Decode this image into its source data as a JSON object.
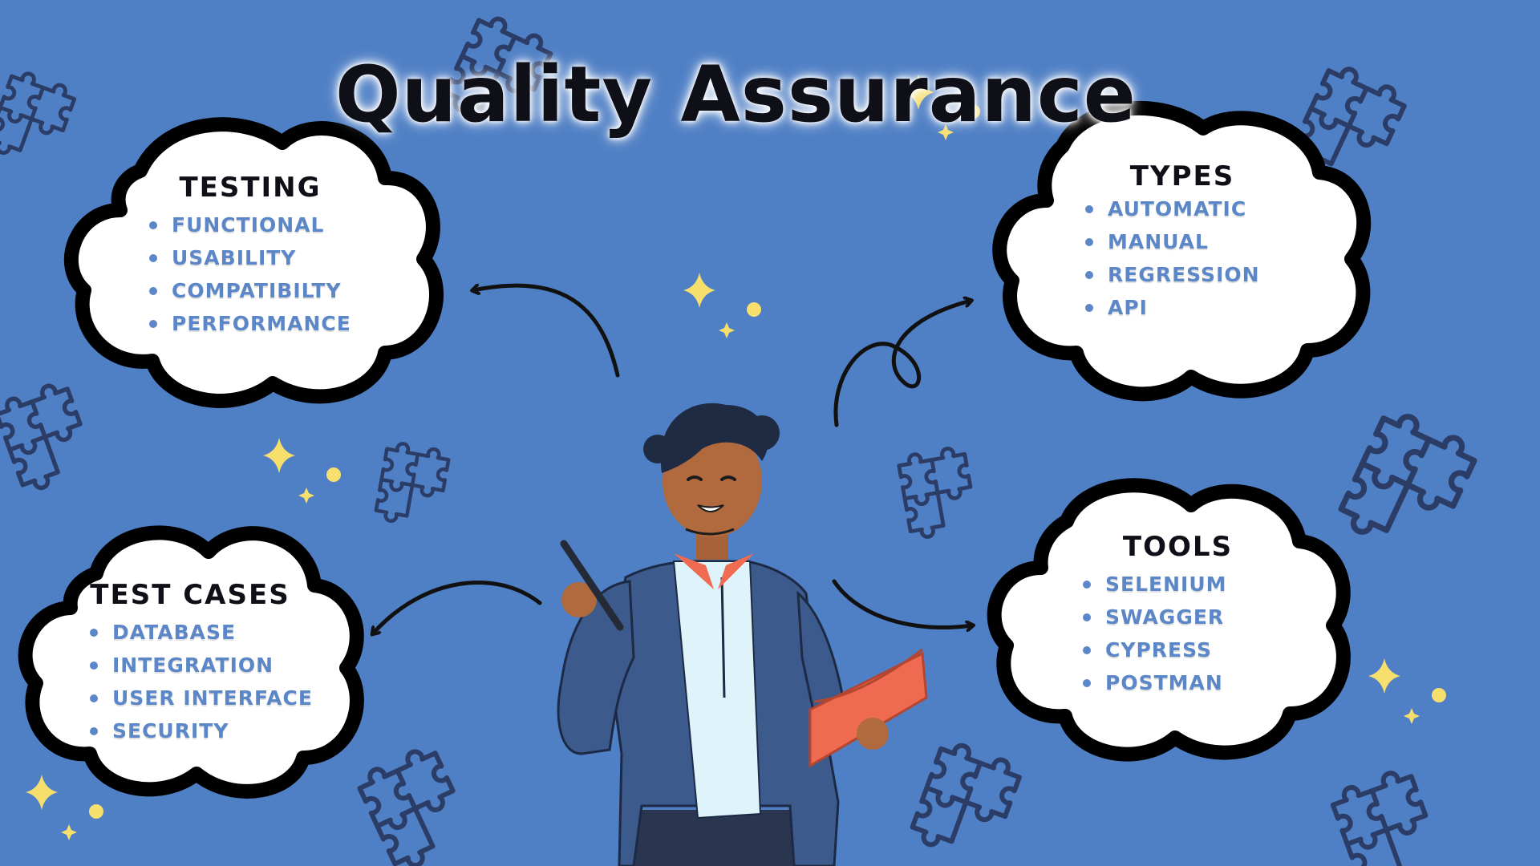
{
  "title": "Quality Assurance",
  "colors": {
    "background": "#4f7fc5",
    "cloud_fill": "#ffffff",
    "cloud_outline": "#000000",
    "list_text": "#5b86c8",
    "sparkle": "#f7df6e",
    "puzzle_piece": "#2b3d66"
  },
  "clouds": [
    {
      "heading": "TESTING",
      "items": [
        "FUNCTIONAL",
        "USABILITY",
        "COMPATIBILTY",
        "PERFORMANCE"
      ]
    },
    {
      "heading": "TYPES",
      "items": [
        "AUTOMATIC",
        "MANUAL",
        "REGRESSION",
        "API"
      ]
    },
    {
      "heading": "TEST CASES",
      "items": [
        "DATABASE",
        "INTEGRATION",
        "USER INTERFACE",
        "SECURITY"
      ]
    },
    {
      "heading": "TOOLS",
      "items": [
        "SELENIUM",
        "SWAGGER",
        "CYPRESS",
        "POSTMAN"
      ]
    }
  ],
  "decorations": {
    "icons": [
      "puzzle-piece-icon",
      "sparkle-icon",
      "curved-arrow-icon"
    ],
    "figure": "presenter-illustration"
  }
}
